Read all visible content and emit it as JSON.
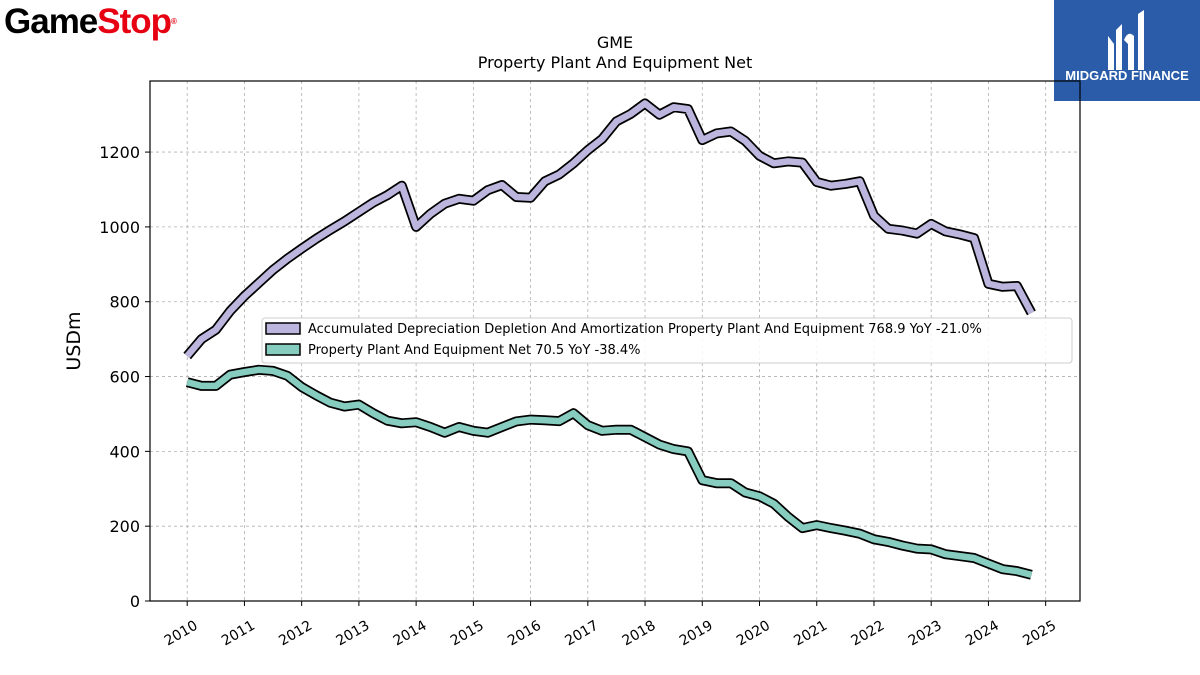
{
  "logo_left": {
    "part1": "Game",
    "part2": "Stop",
    "mark": "®"
  },
  "logo_right": {
    "text": "MIDGARD FINANCE",
    "bg_color": "#2a5caa"
  },
  "chart_data": {
    "type": "line",
    "title": "GME",
    "subtitle": "Property Plant And Equipment Net",
    "xlabel": "",
    "ylabel": "USDm",
    "xlim": [
      2009.35,
      2025.6
    ],
    "ylim": [
      0,
      1390
    ],
    "yticks": [
      0,
      200,
      400,
      600,
      800,
      1000,
      1200
    ],
    "xticks": [
      2010,
      2011,
      2012,
      2013,
      2014,
      2015,
      2016,
      2017,
      2018,
      2019,
      2020,
      2021,
      2022,
      2023,
      2024,
      2025
    ],
    "grid": true,
    "legend_position": "center-right",
    "series": [
      {
        "name": "Accumulated Depreciation Depletion And Amortization Property Plant And Equipment",
        "legend_label": "Accumulated Depreciation Depletion And Amortization Property Plant And Equipment  768.9 YoY -21.0%",
        "color": "#bcb5dd",
        "x": [
          2010.0,
          2010.25,
          2010.5,
          2010.75,
          2011.0,
          2011.25,
          2011.5,
          2011.75,
          2012.0,
          2012.25,
          2012.5,
          2012.75,
          2013.0,
          2013.25,
          2013.5,
          2013.75,
          2014.0,
          2014.25,
          2014.5,
          2014.75,
          2015.0,
          2015.25,
          2015.5,
          2015.75,
          2016.0,
          2016.25,
          2016.5,
          2016.75,
          2017.0,
          2017.25,
          2017.5,
          2017.75,
          2018.0,
          2018.25,
          2018.5,
          2018.75,
          2019.0,
          2019.25,
          2019.5,
          2019.75,
          2020.0,
          2020.25,
          2020.5,
          2020.75,
          2021.0,
          2021.25,
          2021.5,
          2021.75,
          2022.0,
          2022.25,
          2022.5,
          2022.75,
          2023.0,
          2023.25,
          2023.5,
          2023.75,
          2024.0,
          2024.25,
          2024.5,
          2024.75
        ],
        "y": [
          655,
          700,
          725,
          775,
          815,
          850,
          885,
          915,
          942,
          968,
          992,
          1015,
          1040,
          1065,
          1085,
          1110,
          1000,
          1035,
          1062,
          1075,
          1070,
          1098,
          1112,
          1080,
          1078,
          1122,
          1140,
          1170,
          1205,
          1235,
          1282,
          1302,
          1330,
          1300,
          1320,
          1315,
          1232,
          1250,
          1255,
          1230,
          1190,
          1170,
          1175,
          1172,
          1120,
          1110,
          1115,
          1122,
          1030,
          995,
          990,
          982,
          1008,
          988,
          980,
          970,
          848,
          840,
          842,
          770
        ]
      },
      {
        "name": "Property Plant And Equipment Net",
        "legend_label": "Property Plant And Equipment Net  70.5 YoY -38.4%",
        "color": "#86cdc0",
        "x": [
          2010.0,
          2010.25,
          2010.5,
          2010.75,
          2011.0,
          2011.25,
          2011.5,
          2011.75,
          2012.0,
          2012.25,
          2012.5,
          2012.75,
          2013.0,
          2013.25,
          2013.5,
          2013.75,
          2014.0,
          2014.25,
          2014.5,
          2014.75,
          2015.0,
          2015.25,
          2015.5,
          2015.75,
          2016.0,
          2016.25,
          2016.5,
          2016.75,
          2017.0,
          2017.25,
          2017.5,
          2017.75,
          2018.0,
          2018.25,
          2018.5,
          2018.75,
          2019.0,
          2019.25,
          2019.5,
          2019.75,
          2020.0,
          2020.25,
          2020.5,
          2020.75,
          2021.0,
          2021.25,
          2021.5,
          2021.75,
          2022.0,
          2022.25,
          2022.5,
          2022.75,
          2023.0,
          2023.25,
          2023.5,
          2023.75,
          2024.0,
          2024.25,
          2024.5,
          2024.75
        ],
        "y": [
          585,
          575,
          575,
          605,
          612,
          618,
          615,
          602,
          572,
          550,
          530,
          520,
          525,
          502,
          482,
          475,
          478,
          465,
          450,
          465,
          455,
          450,
          465,
          480,
          485,
          483,
          481,
          502,
          470,
          455,
          458,
          458,
          438,
          418,
          406,
          400,
          323,
          315,
          315,
          290,
          280,
          260,
          225,
          195,
          203,
          195,
          188,
          180,
          165,
          158,
          148,
          140,
          138,
          125,
          120,
          115,
          100,
          85,
          80,
          70
        ]
      }
    ]
  }
}
